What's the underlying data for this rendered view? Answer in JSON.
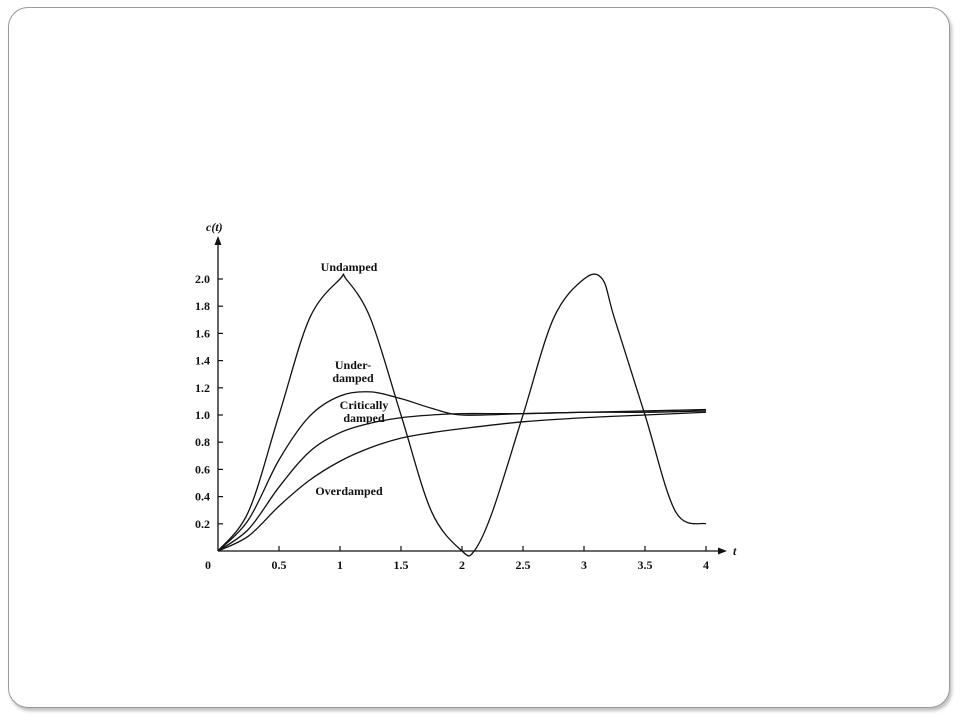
{
  "chart_data": {
    "type": "line",
    "xlabel": "t",
    "ylabel": "c(t)",
    "xlim": [
      0,
      4.2
    ],
    "ylim": [
      0,
      2.2
    ],
    "x_ticks": [
      0,
      0.5,
      1,
      1.5,
      2,
      2.5,
      3,
      3.5,
      4
    ],
    "x_tick_labels": [
      "0",
      "0.5",
      "1",
      "1.5",
      "2",
      "2.5",
      "3",
      "3.5",
      "4"
    ],
    "y_ticks": [
      0.2,
      0.4,
      0.6,
      0.8,
      1.0,
      1.2,
      1.4,
      1.6,
      1.8,
      2.0
    ],
    "y_tick_labels": [
      "0.2",
      "0.4",
      "0.6",
      "0.8",
      "1.0",
      "1.2",
      "1.4",
      "1.6",
      "1.8",
      "2.0"
    ],
    "grid": false,
    "legend": "none",
    "series": [
      {
        "name": "Undamped",
        "x": [
          0,
          0.25,
          0.5,
          0.75,
          1.0,
          1.05,
          1.25,
          1.5,
          1.75,
          2.0,
          2.1,
          2.25,
          2.5,
          2.75,
          3.0,
          3.15,
          3.25,
          3.5,
          3.75,
          4.0
        ],
        "y": [
          0,
          0.29,
          1.0,
          1.71,
          2.0,
          2.0,
          1.71,
          1.0,
          0.29,
          0.0,
          0.0,
          0.29,
          1.0,
          1.71,
          2.0,
          2.0,
          1.71,
          1.0,
          0.29,
          0.2
        ]
      },
      {
        "name": "Under-\ndamped",
        "x": [
          0,
          0.25,
          0.5,
          0.75,
          1.0,
          1.25,
          1.5,
          1.75,
          2.0,
          2.5,
          3.0,
          3.5,
          4.0
        ],
        "y": [
          0,
          0.23,
          0.67,
          0.99,
          1.14,
          1.17,
          1.12,
          1.05,
          1.0,
          1.01,
          1.02,
          1.03,
          1.04
        ]
      },
      {
        "name": "Critically\ndamped",
        "x": [
          0,
          0.25,
          0.5,
          0.75,
          1.0,
          1.25,
          1.5,
          1.75,
          2.0,
          2.5,
          3.0,
          3.5,
          4.0
        ],
        "y": [
          0,
          0.16,
          0.47,
          0.73,
          0.87,
          0.94,
          0.98,
          1.0,
          1.01,
          1.01,
          1.02,
          1.02,
          1.03
        ]
      },
      {
        "name": "Overdamped",
        "x": [
          0,
          0.25,
          0.5,
          0.75,
          1.0,
          1.25,
          1.5,
          1.75,
          2.0,
          2.5,
          3.0,
          3.5,
          4.0
        ],
        "y": [
          0,
          0.11,
          0.33,
          0.52,
          0.66,
          0.76,
          0.83,
          0.87,
          0.9,
          0.95,
          0.98,
          1.0,
          1.02
        ]
      }
    ]
  }
}
